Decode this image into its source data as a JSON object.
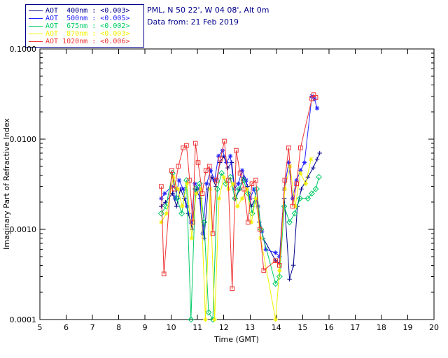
{
  "header": {
    "line1": "PML, N 50 22', W 04 08', Alt 0m",
    "line2": "Data from: 21 Feb 2019"
  },
  "legend": {
    "border_color": "#00008b",
    "items": [
      {
        "label": "AOT  400nm : <0.003>",
        "color": "#00008b"
      },
      {
        "label": "AOT  500nm : <0.005>",
        "color": "#2424ff"
      },
      {
        "label": "AOT  675nm : <0.002>",
        "color": "#00cc66"
      },
      {
        "label": "AOT  870nm : <0.003>",
        "color": "#f2f200"
      },
      {
        "label": "AOT 1020nm : <0.006>",
        "color": "#ee3333"
      }
    ]
  },
  "chart_data": {
    "type": "line",
    "title": "",
    "xlabel": "Time (GMT)",
    "ylabel": "Imaginary Part of Refractive Index",
    "xlim": [
      5,
      20
    ],
    "ylim": [
      0.0001,
      0.1
    ],
    "yscale": "log",
    "grid": false,
    "legend_position": "top-left-outside",
    "xticks": [
      5,
      6,
      7,
      8,
      9,
      10,
      11,
      12,
      13,
      14,
      15,
      16,
      17,
      18,
      19,
      20
    ],
    "yticks": [
      0.0001,
      0.001,
      0.01,
      0.1
    ],
    "ytick_labels": [
      "0.0001",
      "0.0010",
      "0.0100",
      "0.1000"
    ],
    "series": [
      {
        "name": "AOT 400nm",
        "average": "<0.003>",
        "color": "#00008b",
        "marker": "plus",
        "x": [
          9.62,
          9.78,
          10.05,
          10.2,
          10.35,
          10.5,
          10.65,
          10.8,
          10.95,
          11.1,
          11.25,
          11.4,
          11.55,
          11.7,
          11.85,
          12.0,
          12.15,
          12.3,
          12.45,
          12.6,
          12.75,
          12.9,
          13.05,
          13.2,
          13.35,
          13.5,
          13.97,
          14.12,
          14.3,
          14.5,
          14.65,
          14.8,
          14.95,
          15.2,
          15.4,
          15.55,
          15.65
        ],
        "y": [
          0.0018,
          0.002,
          0.0025,
          0.0018,
          0.0028,
          0.0022,
          0.0015,
          0.001,
          0.0028,
          0.0022,
          0.0008,
          0.0028,
          0.0038,
          0.003,
          0.0055,
          0.0065,
          0.0048,
          0.0055,
          0.0022,
          0.0028,
          0.0038,
          0.003,
          0.0018,
          0.0022,
          0.0012,
          0.0008,
          0.00045,
          0.00042,
          0.0022,
          0.00028,
          0.0004,
          0.0018,
          0.0028,
          0.0038,
          0.0048,
          0.006,
          0.007
        ]
      },
      {
        "name": "AOT 500nm",
        "average": "<0.005>",
        "color": "#2424ff",
        "marker": "asterisk",
        "x": [
          9.62,
          9.75,
          10.02,
          10.15,
          10.3,
          10.45,
          10.6,
          10.75,
          10.9,
          11.05,
          11.2,
          11.35,
          11.5,
          11.65,
          11.8,
          11.95,
          12.1,
          12.25,
          12.4,
          12.55,
          12.7,
          12.85,
          13.0,
          13.15,
          13.3,
          13.45,
          13.6,
          13.97,
          14.12,
          14.3,
          14.47,
          14.62,
          14.77,
          14.92,
          15.07,
          15.35,
          15.45,
          15.55
        ],
        "y": [
          0.0022,
          0.0025,
          0.003,
          0.0022,
          0.0035,
          0.0028,
          0.0018,
          0.0012,
          0.0032,
          0.0028,
          0.0009,
          0.0032,
          0.0045,
          0.0035,
          0.0065,
          0.0075,
          0.0055,
          0.0065,
          0.0028,
          0.0032,
          0.0045,
          0.0035,
          0.0022,
          0.0028,
          0.0018,
          0.00095,
          0.0006,
          0.00055,
          0.0005,
          0.0028,
          0.0055,
          0.0022,
          0.0035,
          0.0045,
          0.0055,
          0.03,
          0.028,
          0.022
        ]
      },
      {
        "name": "AOT 675nm",
        "average": "<0.002>",
        "color": "#00cc66",
        "marker": "diamond",
        "x": [
          9.62,
          9.8,
          10.05,
          10.22,
          10.4,
          10.58,
          10.75,
          10.92,
          11.08,
          11.25,
          11.42,
          11.58,
          11.75,
          11.92,
          12.08,
          12.25,
          12.42,
          12.58,
          12.75,
          12.92,
          13.08,
          13.25,
          13.42,
          13.97,
          14.12,
          14.3,
          14.5,
          14.7,
          14.9,
          15.2,
          15.35,
          15.5,
          15.62
        ],
        "y": [
          0.0015,
          0.0018,
          0.0042,
          0.0022,
          0.0015,
          0.0035,
          0.0001,
          0.0028,
          0.0032,
          0.0012,
          0.00012,
          0.0001,
          0.0028,
          0.0042,
          0.0032,
          0.0038,
          0.0022,
          0.0028,
          0.0035,
          0.0025,
          0.0015,
          0.0028,
          0.001,
          0.00025,
          0.0003,
          0.0018,
          0.0012,
          0.0015,
          0.0022,
          0.0022,
          0.0025,
          0.0028,
          0.0038
        ]
      },
      {
        "name": "AOT 870nm",
        "average": "<0.003>",
        "color": "#f2f200",
        "marker": "asterisk",
        "x": [
          9.62,
          9.82,
          10.08,
          10.25,
          10.42,
          10.6,
          10.78,
          10.95,
          11.12,
          11.3,
          11.48,
          11.65,
          11.82,
          12.0,
          12.18,
          12.35,
          12.52,
          12.7,
          12.88,
          13.05,
          13.22,
          13.4,
          13.97,
          14.12,
          14.32,
          14.52,
          14.72,
          14.92,
          15.12,
          15.32
        ],
        "y": [
          0.0012,
          0.0015,
          0.0038,
          0.0028,
          0.0018,
          0.0032,
          0.0008,
          0.0025,
          0.0028,
          0.0001,
          0.0028,
          0.0001,
          0.0022,
          0.0038,
          0.0028,
          0.0032,
          0.0018,
          0.0022,
          0.0028,
          0.0012,
          0.0022,
          0.0008,
          0.0001,
          0.00035,
          0.0028,
          0.005,
          0.0018,
          0.0042,
          0.0032,
          0.006
        ]
      },
      {
        "name": "AOT 1020nm",
        "average": "<0.006>",
        "color": "#ee3333",
        "marker": "square",
        "x": [
          9.62,
          9.72,
          10.02,
          10.12,
          10.27,
          10.45,
          10.58,
          10.7,
          10.82,
          10.92,
          11.02,
          11.18,
          11.32,
          11.45,
          11.58,
          11.72,
          11.87,
          12.02,
          12.17,
          12.32,
          12.47,
          12.62,
          12.77,
          12.92,
          13.07,
          13.22,
          13.37,
          13.52,
          13.97,
          14.12,
          14.32,
          14.47,
          14.62,
          14.77,
          14.92,
          15.35,
          15.42,
          15.5
        ],
        "y": [
          0.003,
          0.00032,
          0.0045,
          0.0028,
          0.005,
          0.008,
          0.0085,
          0.0035,
          0.0012,
          0.009,
          0.0055,
          0.0025,
          0.0045,
          0.005,
          0.0009,
          0.0035,
          0.006,
          0.0095,
          0.0035,
          0.00022,
          0.0075,
          0.0042,
          0.0028,
          0.0012,
          0.0032,
          0.0035,
          0.001,
          0.00035,
          0.00045,
          0.0004,
          0.0035,
          0.008,
          0.0018,
          0.0032,
          0.008,
          0.028,
          0.031,
          0.029
        ]
      }
    ]
  }
}
